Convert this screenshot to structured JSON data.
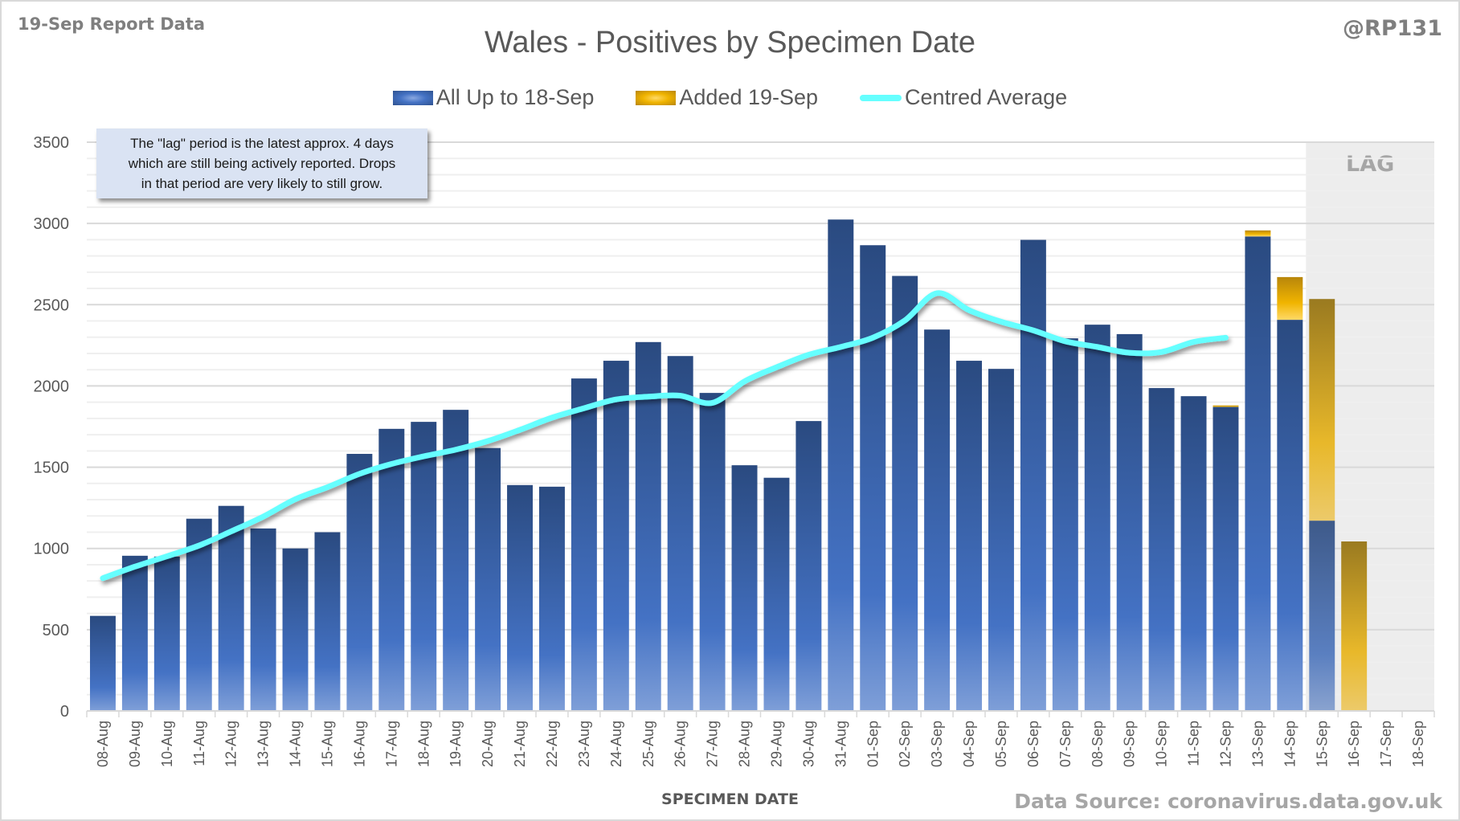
{
  "header": {
    "report_label": "19-Sep Report Data",
    "author_handle": "@RP131"
  },
  "annotation": {
    "lines": [
      "The \"lag\" period is the latest approx. 4 days",
      "which are still being actively reported.  Drops",
      "in that period are very likely to still grow."
    ]
  },
  "footer": {
    "data_source": "Data Source: coronavirus.data.gov.uk"
  },
  "colors": {
    "base_series": "#4472c4",
    "added_series": "#f0b400",
    "average_line": "#66ffff",
    "lag_region": "#ededed"
  },
  "chart_data": {
    "type": "bar",
    "stacked": true,
    "title": "Wales - Positives by Specimen Date",
    "xlabel": "SPECIMEN DATE",
    "ylabel": "",
    "ylim": [
      0,
      3500
    ],
    "yticks": [
      0,
      500,
      1000,
      1500,
      2000,
      2500,
      3000,
      3500
    ],
    "minor_grid_step": 100,
    "grid": true,
    "legend_position": "top",
    "lag_region": {
      "label": "LAG",
      "from_category": "15-Sep",
      "to_category": "18-Sep"
    },
    "categories": [
      "08-Aug",
      "09-Aug",
      "10-Aug",
      "11-Aug",
      "12-Aug",
      "13-Aug",
      "14-Aug",
      "15-Aug",
      "16-Aug",
      "17-Aug",
      "18-Aug",
      "19-Aug",
      "20-Aug",
      "21-Aug",
      "22-Aug",
      "23-Aug",
      "24-Aug",
      "25-Aug",
      "26-Aug",
      "27-Aug",
      "28-Aug",
      "29-Aug",
      "30-Aug",
      "31-Aug",
      "01-Sep",
      "02-Sep",
      "03-Sep",
      "04-Sep",
      "05-Sep",
      "06-Sep",
      "07-Sep",
      "08-Sep",
      "09-Sep",
      "10-Sep",
      "11-Sep",
      "12-Sep",
      "13-Sep",
      "14-Sep",
      "15-Sep",
      "16-Sep",
      "17-Sep",
      "18-Sep"
    ],
    "series": [
      {
        "name": "All Up to 18-Sep",
        "kind": "bar",
        "values": [
          585,
          955,
          950,
          1183,
          1262,
          1123,
          1000,
          1100,
          1582,
          1736,
          1779,
          1853,
          1618,
          1390,
          1380,
          2046,
          2155,
          2270,
          2184,
          1957,
          1512,
          1435,
          1784,
          3024,
          2866,
          2677,
          2347,
          2155,
          2105,
          2899,
          2293,
          2377,
          2319,
          1987,
          1937,
          1871,
          2920,
          2407,
          1171,
          0,
          0,
          0
        ]
      },
      {
        "name": "Added 19-Sep",
        "kind": "bar",
        "values": [
          0,
          0,
          0,
          0,
          0,
          0,
          0,
          0,
          0,
          0,
          0,
          0,
          0,
          0,
          0,
          0,
          0,
          0,
          0,
          0,
          0,
          0,
          0,
          0,
          0,
          0,
          0,
          0,
          0,
          0,
          0,
          0,
          0,
          0,
          0,
          9,
          37,
          263,
          1364,
          1043,
          0,
          0
        ]
      },
      {
        "name": "Centred Average",
        "kind": "line",
        "values": [
          817,
          888,
          952,
          1018,
          1105,
          1196,
          1303,
          1377,
          1459,
          1520,
          1567,
          1608,
          1661,
          1730,
          1805,
          1863,
          1917,
          1934,
          1940,
          1896,
          2028,
          2115,
          2192,
          2240,
          2297,
          2403,
          2571,
          2466,
          2395,
          2342,
          2275,
          2240,
          2204,
          2209,
          2271,
          2297,
          null,
          null,
          null,
          null,
          null,
          null
        ]
      }
    ]
  }
}
